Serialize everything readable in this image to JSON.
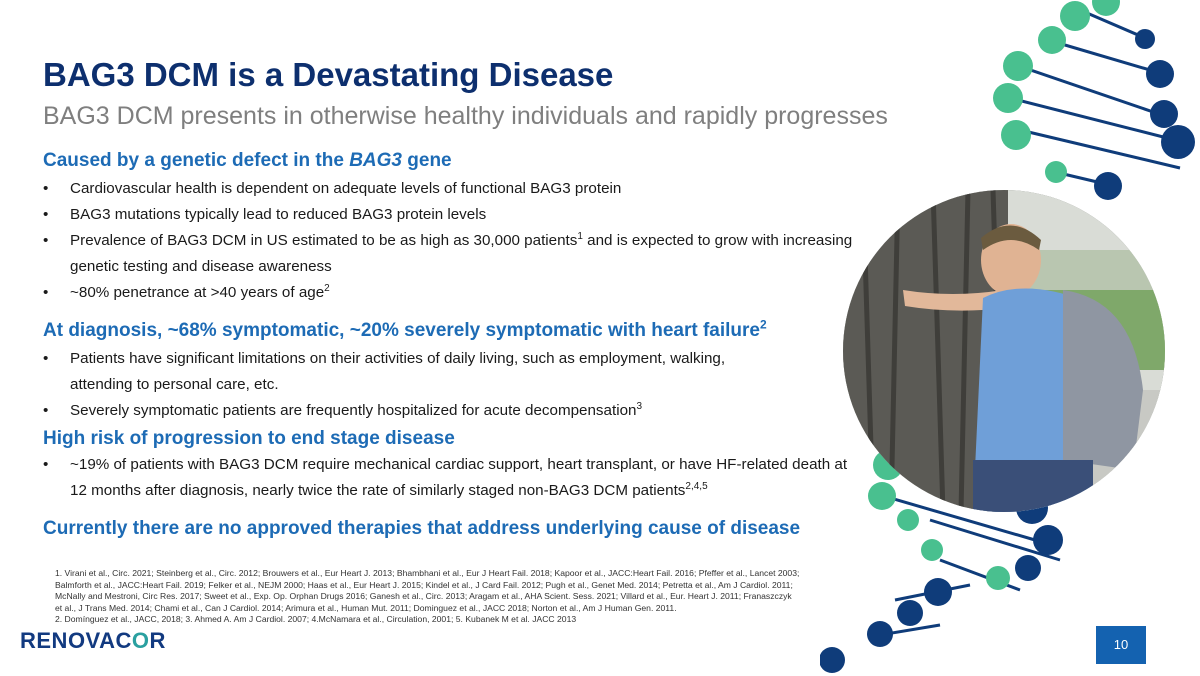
{
  "slide": {
    "title": "BAG3 DCM is a Devastating Disease",
    "subtitle": "BAG3 DCM presents in otherwise healthy individuals and rapidly progresses",
    "bullet_char": "•",
    "section1": {
      "heading_pre": "Caused by a genetic defect in the ",
      "heading_italic": "BAG3",
      "heading_post": " gene",
      "bullets": [
        {
          "text": "Cardiovascular health is dependent on adequate levels of functional BAG3 protein"
        },
        {
          "text": "BAG3 mutations typically lead to reduced BAG3 protein levels"
        },
        {
          "text_pre": "Prevalence of BAG3 DCM in US estimated to be as high as 30,000 patients",
          "sup": "1",
          "text_post": " and is expected to grow with increasing genetic testing and disease awareness"
        },
        {
          "text_pre": "~80% penetrance at >40 years of age",
          "sup": "2"
        }
      ]
    },
    "section2": {
      "heading": "At diagnosis, ~68% symptomatic, ~20% severely symptomatic with heart failure",
      "heading_sup": "2",
      "bullets": [
        {
          "text": "Patients have significant limitations on their activities of daily living, such as employment, walking, attending to personal care, etc."
        },
        {
          "text_pre": "Severely symptomatic patients are frequently hospitalized for acute decompensation",
          "sup": "3"
        }
      ]
    },
    "section3": {
      "heading": "High risk of progression to end stage disease",
      "bullets": [
        {
          "text_pre": "~19% of patients with BAG3 DCM require mechanical cardiac support, heart transplant, or have HF-related death at 12 months after diagnosis, nearly twice the rate of similarly staged non-BAG3 DCM patients",
          "sup": "2,4,5"
        }
      ]
    },
    "section4": {
      "heading": "Currently there are no approved therapies that address underlying cause of disease"
    },
    "references": {
      "line1": "1. Virani et al., Circ. 2021; Steinberg et al., Circ. 2012; Brouwers et al., Eur Heart J. 2013; Bhambhani et al., Eur J Heart Fail. 2018; Kapoor et al., JACC:Heart Fail. 2016; Pfeffer et al., Lancet 2003; Balmforth et al., JACC:Heart Fail. 2019; Felker et al., NEJM 2000;  Haas et al., Eur Heart J. 2015; Kindel et al., J Card Fail. 2012; Pugh et al., Genet Med. 2014; Petretta et al., Am J Cardiol. 2011; McNally and Mestroni, Circ Res. 2017; Sweet et al., Exp. Op. Orphan Drugs 2016; Ganesh et al., Circ. 2013; Aragam et al., AHA Scient. Sess. 2021; Villard et al., Eur. Heart J. 2011; Franaszczyk et al., J Trans Med. 2014; Chami et al., Can J Cardiol. 2014; Arimura et al., Human Mut. 2011; Dominguez et al., JACC 2018; Norton et al., Am J Human Gen. 2011.",
      "line2": "2. Domínguez et al., JACC, 2018; 3. Ahmed A.  Am J Cardiol. 2007; 4.McNamara et al., Circulation, 2001;  5. Kubanek M et al.  JACC 2013"
    },
    "logo": {
      "part1": "RENOVAC",
      "part2": "O",
      "part3": "R"
    },
    "page_number": "10",
    "colors": {
      "navy": "#0d2f6e",
      "blue": "#1d6bb5",
      "teal": "#49c08f",
      "dark_navy": "#0f3c7a",
      "page_box": "#1462b0"
    },
    "icons": {
      "photo": "man-leaning-on-tree-photo",
      "decor": "dna-helix-graphic"
    }
  }
}
